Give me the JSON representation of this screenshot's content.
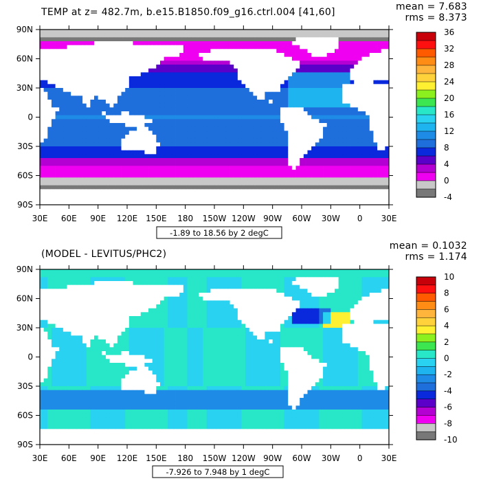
{
  "chart_data": [
    {
      "type": "heatmap",
      "title": "TEMP at z= 482.7m, b.e15.B1850.f09_g16.ctrl.004 [41,60]",
      "stats": {
        "mean": "mean = 7.683",
        "rms": "rms = 8.373"
      },
      "range_note": "-1.89 to 18.56 by 2 degC",
      "x_tick_labels": [
        "30E",
        "60E",
        "90E",
        "120E",
        "150E",
        "180",
        "150W",
        "120W",
        "90W",
        "60W",
        "30W",
        "0",
        "30E"
      ],
      "y_tick_labels": [
        "90N",
        "60N",
        "30N",
        "0",
        "30S",
        "60S",
        "90S"
      ],
      "colorbar": {
        "labels": [
          "36",
          "32",
          "28",
          "24",
          "20",
          "16",
          "12",
          "8",
          "4",
          "0",
          "-4"
        ],
        "colors": [
          "#c8000a",
          "#ff1010",
          "#ff5a00",
          "#ff8c14",
          "#ffb43c",
          "#ffd23c",
          "#fff032",
          "#8cf01e",
          "#3ce650",
          "#28e6c8",
          "#28d2f0",
          "#1eb4f0",
          "#1e8ce6",
          "#1e6edc",
          "#0a28dc",
          "#5a00c8",
          "#b400d2",
          "#f000f0",
          "#c8c8c8",
          "#787878"
        ]
      },
      "land_color": "#ffffff"
    },
    {
      "type": "heatmap",
      "title": "(MODEL - LEVITUS/PHC2)",
      "stats": {
        "mean": "mean = 0.1032",
        "rms": "rms = 1.174"
      },
      "range_note": "-7.926 to 7.948 by 1 degC",
      "x_tick_labels": [
        "30E",
        "60E",
        "90E",
        "120E",
        "150E",
        "180",
        "150W",
        "120W",
        "90W",
        "60W",
        "30W",
        "0",
        "30E"
      ],
      "y_tick_labels": [
        "90N",
        "60N",
        "30N",
        "0",
        "30S",
        "60S",
        "90S"
      ],
      "colorbar": {
        "labels": [
          "10",
          "8",
          "6",
          "4",
          "2",
          "0",
          "-2",
          "-4",
          "-6",
          "-8",
          "-10"
        ],
        "colors": [
          "#c8000a",
          "#ff1010",
          "#ff5a00",
          "#ff8c14",
          "#ffb43c",
          "#ffd23c",
          "#fff032",
          "#8cf01e",
          "#3ce650",
          "#28e6c8",
          "#28d2f0",
          "#1eb4f0",
          "#1e8ce6",
          "#1e6edc",
          "#0a28dc",
          "#5a00c8",
          "#b400d2",
          "#f000f0",
          "#c8c8c8",
          "#787878"
        ]
      },
      "land_color": "#ffffff"
    }
  ]
}
